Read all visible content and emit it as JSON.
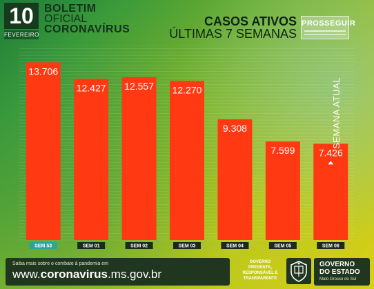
{
  "header": {
    "day": "10",
    "month": "FEVEREIRO",
    "boletim_line1": "BOLETIM",
    "boletim_line2": "OFICIAL",
    "boletim_line3": "CORONAVÍRUS",
    "casos_title": "CASOS ATIVOS",
    "casos_subtitle": "ÚLTIMAS 7 SEMANAS",
    "program_name": "PROSSEGUIR"
  },
  "chart_data": {
    "type": "bar",
    "title": "CASOS ATIVOS",
    "subtitle": "ÚLTIMAS 7 SEMANAS",
    "categories": [
      "SEM 53",
      "SEM 01",
      "SEM 02",
      "SEM 03",
      "SEM 04",
      "SEM 05",
      "SEM 06"
    ],
    "values": [
      13706,
      12427,
      12557,
      12270,
      9308,
      7599,
      7426
    ],
    "value_labels": [
      "13.706",
      "12.427",
      "12.557",
      "12.270",
      "9.308",
      "7.599",
      "7.426"
    ],
    "highlighted_category": "SEM 53",
    "current_week_label": "SEMANA ATUAL",
    "current_week_index": 6,
    "ylim": [
      0,
      15000
    ],
    "bar_color": "#ff3a12",
    "grid": true
  },
  "footer": {
    "site_caption": "Saiba mais sobre o combate à pandemia em",
    "site_prefix": "www.",
    "site_bold": "coronavirus",
    "site_suffix": ".ms.gov.br",
    "gov_slogan_1": "GOVERNO",
    "gov_slogan_2": "PRESENTE,",
    "gov_slogan_3": "RESPONSÁVEL E",
    "gov_slogan_4": "TRANSPARENTE",
    "gov_name_1": "GOVERNO",
    "gov_name_2": "DO ESTADO",
    "gov_state": "Mato Grosso do Sul"
  },
  "colors": {
    "bar": "#ff3a12",
    "bar_label": "#ffffff",
    "category_label_bg": "#1b2a1b",
    "highlight_label_bg": "#2aa59a",
    "dark_green": "#21361f"
  }
}
